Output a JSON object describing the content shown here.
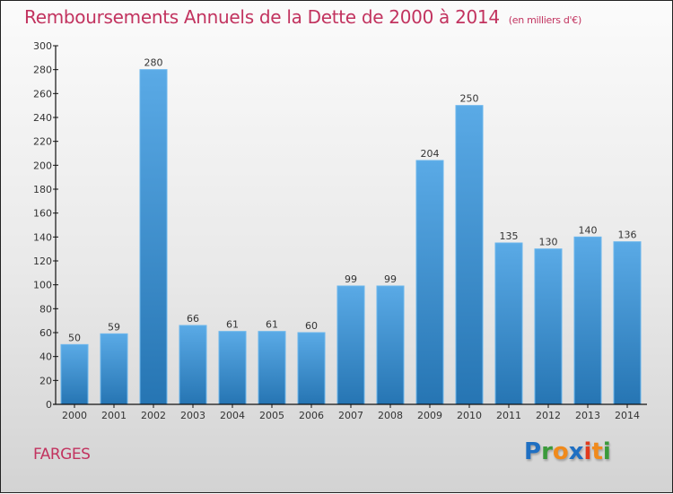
{
  "title": "Remboursements Annuels de la Dette de 2000 à 2014",
  "subtitle": "(en milliers d'€)",
  "place": "FARGES",
  "logo": {
    "letters": [
      {
        "ch": "P",
        "color": "#1f6fc2"
      },
      {
        "ch": "r",
        "color": "#3a9a3a"
      },
      {
        "ch": "o",
        "color": "#f08a1c"
      },
      {
        "ch": "x",
        "color": "#1f6fc2"
      },
      {
        "ch": "i",
        "color": "#e23a1c"
      },
      {
        "ch": "t",
        "color": "#f08a1c"
      },
      {
        "ch": "i",
        "color": "#3a9a3a"
      }
    ]
  },
  "colors": {
    "title": "#c2335f",
    "bar_top": "#5aaae6",
    "bar_bottom": "#2675b3"
  },
  "chart_data": {
    "type": "bar",
    "title": "Remboursements Annuels de la Dette de 2000 à 2014 (en milliers d'€)",
    "xlabel": "",
    "ylabel": "",
    "categories": [
      "2000",
      "2001",
      "2002",
      "2003",
      "2004",
      "2005",
      "2006",
      "2007",
      "2008",
      "2009",
      "2010",
      "2011",
      "2012",
      "2013",
      "2014"
    ],
    "values": [
      50,
      59,
      280,
      66,
      61,
      61,
      60,
      99,
      99,
      204,
      250,
      135,
      130,
      140,
      136
    ],
    "ylim": [
      0,
      300
    ],
    "yticks": [
      0,
      20,
      40,
      60,
      80,
      100,
      120,
      140,
      160,
      180,
      200,
      220,
      240,
      260,
      280,
      300
    ],
    "grid": false,
    "legend": "none"
  }
}
